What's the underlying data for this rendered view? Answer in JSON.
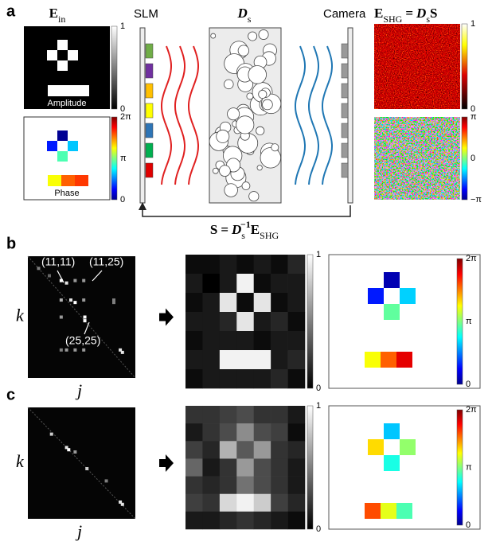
{
  "panel_a": {
    "label": "a",
    "e_in": {
      "base": "E",
      "sub": "in"
    },
    "amplitude_caption": "Amplitude",
    "amplitude_colorbar": [
      "1",
      "0"
    ],
    "phase_caption": "Phase",
    "phase_colorbar": [
      "2π",
      "π",
      "0"
    ],
    "slm": "SLM",
    "ds": {
      "base": "D",
      "sub": "s"
    },
    "camera": "Camera",
    "e_shg_eq": {
      "lhs_base": "E",
      "lhs_sub": "SHG",
      "equals": "=",
      "rhs_base": "D",
      "rhs_sub": "s",
      "rhs_tail": "S"
    },
    "shg_amp_colorbar": [
      "1",
      "0"
    ],
    "shg_phase_colorbar": [
      "π",
      "0",
      "−π"
    ],
    "s_eq": {
      "lhs": "S",
      "equals": "=",
      "d_base": "D",
      "d_sub": "s",
      "d_sup": "−1",
      "e_base": "E",
      "e_sub": "SHG"
    }
  },
  "panel_b": {
    "label": "b",
    "annotations": [
      "(11,11)",
      "(11,25)",
      "(25,25)"
    ],
    "y_axis": "k",
    "x_axis": "j",
    "amplitude_colorbar": [
      "1",
      "0"
    ],
    "phase_colorbar": [
      "2π",
      "π",
      "0"
    ]
  },
  "panel_c": {
    "label": "c",
    "y_axis": "k",
    "x_axis": "j",
    "amplitude_colorbar": [
      "1",
      "0"
    ],
    "phase_colorbar": [
      "2π",
      "π",
      "0"
    ]
  }
}
